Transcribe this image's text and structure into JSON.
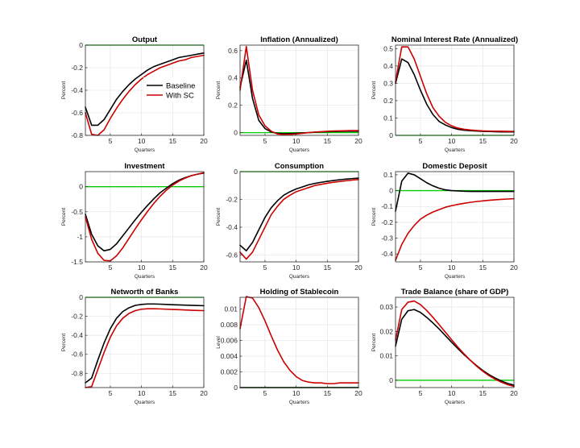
{
  "figure": {
    "legend": [
      "Baseline",
      "With SC"
    ]
  },
  "colors": {
    "baseline": "#000000",
    "with_sc": "#cc0000",
    "zero_line": "#00cc00",
    "grid": "#e6e6e6"
  },
  "chart_data": [
    {
      "type": "line",
      "title": "Output",
      "ylabel": "Percent",
      "xlabel": "Quarters",
      "xlim": [
        1,
        20
      ],
      "ylim": [
        -0.8,
        0
      ],
      "xticks": [
        5,
        10,
        15,
        20
      ],
      "yticks": [
        0,
        -0.2,
        -0.4,
        -0.6,
        -0.8
      ],
      "ytick_labels": [
        "0",
        "-0.2",
        "-0.4",
        "-0.6",
        "-0.8"
      ],
      "legend": "inside-middle-right",
      "x": [
        1,
        2,
        3,
        4,
        5,
        6,
        7,
        8,
        9,
        10,
        11,
        12,
        13,
        14,
        15,
        16,
        17,
        18,
        19,
        20
      ],
      "series": [
        {
          "name": "Baseline",
          "values": [
            -0.55,
            -0.71,
            -0.71,
            -0.66,
            -0.57,
            -0.48,
            -0.41,
            -0.35,
            -0.3,
            -0.26,
            -0.22,
            -0.19,
            -0.17,
            -0.15,
            -0.13,
            -0.11,
            -0.1,
            -0.09,
            -0.08,
            -0.07
          ]
        },
        {
          "name": "With SC",
          "values": [
            -0.6,
            -0.79,
            -0.8,
            -0.75,
            -0.65,
            -0.56,
            -0.48,
            -0.41,
            -0.35,
            -0.3,
            -0.26,
            -0.23,
            -0.2,
            -0.18,
            -0.16,
            -0.14,
            -0.13,
            -0.11,
            -0.1,
            -0.09
          ]
        }
      ]
    },
    {
      "type": "line",
      "title": "Inflation (Annualized)",
      "ylabel": "Percent",
      "xlabel": "Quarters",
      "xlim": [
        1,
        20
      ],
      "ylim": [
        -0.02,
        0.64
      ],
      "xticks": [
        5,
        10,
        15,
        20
      ],
      "yticks": [
        0.6,
        0.4,
        0.2,
        0
      ],
      "ytick_labels": [
        "0.6",
        "0.4",
        "0.2",
        "0"
      ],
      "x": [
        1,
        2,
        3,
        4,
        5,
        6,
        7,
        8,
        9,
        10,
        11,
        12,
        13,
        14,
        15,
        16,
        17,
        18,
        19,
        20
      ],
      "series": [
        {
          "name": "Baseline",
          "values": [
            0.33,
            0.53,
            0.25,
            0.09,
            0.03,
            0.005,
            -0.005,
            -0.008,
            -0.007,
            -0.005,
            -0.002,
            0.0,
            0.003,
            0.005,
            0.007,
            0.008,
            0.009,
            0.01,
            0.01,
            0.01
          ]
        },
        {
          "name": "With SC",
          "values": [
            0.31,
            0.63,
            0.31,
            0.13,
            0.05,
            0.01,
            -0.01,
            -0.014,
            -0.013,
            -0.01,
            -0.005,
            0.0,
            0.004,
            0.007,
            0.01,
            0.012,
            0.013,
            0.014,
            0.015,
            0.015
          ]
        }
      ]
    },
    {
      "type": "line",
      "title": "Nominal Interest Rate (Annualized)",
      "ylabel": "Percent",
      "xlabel": "Quarters",
      "xlim": [
        1,
        20
      ],
      "ylim": [
        0,
        0.52
      ],
      "xticks": [
        5,
        10,
        15,
        20
      ],
      "yticks": [
        0.5,
        0.4,
        0.3,
        0.2,
        0.1,
        0
      ],
      "ytick_labels": [
        "0.5",
        "0.4",
        "0.3",
        "0.2",
        "0.1",
        "0"
      ],
      "x": [
        1,
        2,
        3,
        4,
        5,
        6,
        7,
        8,
        9,
        10,
        11,
        12,
        13,
        14,
        15,
        16,
        17,
        18,
        19,
        20
      ],
      "series": [
        {
          "name": "Baseline",
          "values": [
            0.3,
            0.44,
            0.42,
            0.35,
            0.26,
            0.18,
            0.12,
            0.08,
            0.06,
            0.045,
            0.035,
            0.03,
            0.027,
            0.025,
            0.023,
            0.022,
            0.021,
            0.02,
            0.02,
            0.02
          ]
        },
        {
          "name": "With SC",
          "values": [
            0.31,
            0.51,
            0.51,
            0.44,
            0.34,
            0.24,
            0.16,
            0.11,
            0.075,
            0.055,
            0.042,
            0.035,
            0.031,
            0.028,
            0.026,
            0.025,
            0.024,
            0.024,
            0.023,
            0.023
          ]
        }
      ]
    },
    {
      "type": "line",
      "title": "Investment",
      "ylabel": "Percent",
      "xlabel": "Quarters",
      "xlim": [
        1,
        20
      ],
      "ylim": [
        -1.5,
        0.3
      ],
      "xticks": [
        5,
        10,
        15,
        20
      ],
      "yticks": [
        0,
        -0.5,
        -1,
        -1.5
      ],
      "ytick_labels": [
        "0",
        "-0.5",
        "-1",
        "-1.5"
      ],
      "x": [
        1,
        2,
        3,
        4,
        5,
        6,
        7,
        8,
        9,
        10,
        11,
        12,
        13,
        14,
        15,
        16,
        17,
        18,
        19,
        20
      ],
      "series": [
        {
          "name": "Baseline",
          "values": [
            -0.55,
            -0.95,
            -1.18,
            -1.28,
            -1.25,
            -1.14,
            -0.98,
            -0.82,
            -0.66,
            -0.51,
            -0.37,
            -0.24,
            -0.12,
            -0.03,
            0.06,
            0.13,
            0.18,
            0.22,
            0.25,
            0.27
          ]
        },
        {
          "name": "With SC",
          "values": [
            -0.6,
            -1.05,
            -1.33,
            -1.47,
            -1.48,
            -1.38,
            -1.22,
            -1.03,
            -0.84,
            -0.66,
            -0.49,
            -0.33,
            -0.19,
            -0.07,
            0.03,
            0.11,
            0.17,
            0.22,
            0.25,
            0.28
          ]
        }
      ]
    },
    {
      "type": "line",
      "title": "Consumption",
      "ylabel": "Percent",
      "xlabel": "Quarters",
      "xlim": [
        1,
        20
      ],
      "ylim": [
        -0.65,
        0
      ],
      "xticks": [
        5,
        10,
        15,
        20
      ],
      "yticks": [
        0,
        -0.2,
        -0.4,
        -0.6
      ],
      "ytick_labels": [
        "0",
        "-0.2",
        "-0.4",
        "-0.6"
      ],
      "x": [
        1,
        2,
        3,
        4,
        5,
        6,
        7,
        8,
        9,
        10,
        11,
        12,
        13,
        14,
        15,
        16,
        17,
        18,
        19,
        20
      ],
      "series": [
        {
          "name": "Baseline",
          "values": [
            -0.53,
            -0.57,
            -0.51,
            -0.42,
            -0.33,
            -0.26,
            -0.21,
            -0.17,
            -0.145,
            -0.125,
            -0.11,
            -0.095,
            -0.085,
            -0.077,
            -0.07,
            -0.064,
            -0.058,
            -0.054,
            -0.05,
            -0.047
          ]
        },
        {
          "name": "With SC",
          "values": [
            -0.58,
            -0.63,
            -0.58,
            -0.49,
            -0.4,
            -0.31,
            -0.25,
            -0.2,
            -0.17,
            -0.145,
            -0.13,
            -0.115,
            -0.1,
            -0.092,
            -0.084,
            -0.077,
            -0.071,
            -0.066,
            -0.061,
            -0.057
          ]
        }
      ]
    },
    {
      "type": "line",
      "title": "Domestic Deposit",
      "ylabel": "Percent",
      "xlabel": "Quarters",
      "xlim": [
        1,
        20
      ],
      "ylim": [
        -0.45,
        0.12
      ],
      "xticks": [
        5,
        10,
        15,
        20
      ],
      "yticks": [
        0.1,
        0,
        -0.1,
        -0.2,
        -0.3,
        -0.4
      ],
      "ytick_labels": [
        "0.1",
        "0",
        "-0.1",
        "-0.2",
        "-0.3",
        "-0.4"
      ],
      "x": [
        1,
        2,
        3,
        4,
        5,
        6,
        7,
        8,
        9,
        10,
        11,
        12,
        13,
        14,
        15,
        16,
        17,
        18,
        19,
        20
      ],
      "series": [
        {
          "name": "Baseline",
          "values": [
            -0.13,
            0.06,
            0.11,
            0.1,
            0.075,
            0.05,
            0.03,
            0.015,
            0.005,
            0.0,
            -0.002,
            -0.004,
            -0.005,
            -0.005,
            -0.005,
            -0.005,
            -0.005,
            -0.005,
            -0.005,
            -0.005
          ]
        },
        {
          "name": "With SC",
          "values": [
            -0.44,
            -0.34,
            -0.27,
            -0.22,
            -0.18,
            -0.155,
            -0.135,
            -0.12,
            -0.105,
            -0.095,
            -0.087,
            -0.08,
            -0.074,
            -0.069,
            -0.065,
            -0.061,
            -0.058,
            -0.055,
            -0.053,
            -0.051
          ]
        }
      ]
    },
    {
      "type": "line",
      "title": "Networth of Banks",
      "ylabel": "Percent",
      "xlabel": "Quarters",
      "xlim": [
        1,
        20
      ],
      "ylim": [
        -0.95,
        0
      ],
      "xticks": [
        5,
        10,
        15,
        20
      ],
      "yticks": [
        0,
        -0.2,
        -0.4,
        -0.6,
        -0.8
      ],
      "ytick_labels": [
        "0",
        "-0.2",
        "-0.4",
        "-0.6",
        "-0.8"
      ],
      "x": [
        1,
        2,
        3,
        4,
        5,
        6,
        7,
        8,
        9,
        10,
        11,
        12,
        13,
        14,
        15,
        16,
        17,
        18,
        19,
        20
      ],
      "series": [
        {
          "name": "Baseline",
          "values": [
            -0.9,
            -0.85,
            -0.66,
            -0.48,
            -0.33,
            -0.22,
            -0.15,
            -0.11,
            -0.085,
            -0.075,
            -0.07,
            -0.07,
            -0.072,
            -0.075,
            -0.078,
            -0.08,
            -0.082,
            -0.084,
            -0.086,
            -0.088
          ]
        },
        {
          "name": "With SC",
          "values": [
            -0.95,
            -0.94,
            -0.76,
            -0.58,
            -0.42,
            -0.3,
            -0.22,
            -0.17,
            -0.14,
            -0.125,
            -0.12,
            -0.12,
            -0.122,
            -0.125,
            -0.128,
            -0.13,
            -0.133,
            -0.136,
            -0.138,
            -0.14
          ]
        }
      ]
    },
    {
      "type": "line",
      "title": "Holding of Stablecoin",
      "ylabel": "Level",
      "xlabel": "Quarters",
      "xlim": [
        1,
        20
      ],
      "ylim": [
        0,
        0.0115
      ],
      "xticks": [
        5,
        10,
        15,
        20
      ],
      "yticks": [
        0.01,
        0.008,
        0.006,
        0.004,
        0.002,
        0
      ],
      "ytick_labels": [
        "0.01",
        "0.008",
        "0.006",
        "0.004",
        "0.002",
        "0"
      ],
      "x": [
        1,
        2,
        3,
        4,
        5,
        6,
        7,
        8,
        9,
        10,
        11,
        12,
        13,
        14,
        15,
        16,
        17,
        18,
        19,
        20
      ],
      "series": [
        {
          "name": "Baseline",
          "values": [
            0,
            0,
            0,
            0,
            0,
            0,
            0,
            0,
            0,
            0,
            0,
            0,
            0,
            0,
            0,
            0,
            0,
            0,
            0,
            0
          ]
        },
        {
          "name": "With SC",
          "values": [
            0.0075,
            0.0116,
            0.0114,
            0.0102,
            0.0085,
            0.0066,
            0.0048,
            0.0033,
            0.0022,
            0.0014,
            0.0009,
            0.0007,
            0.0006,
            0.0006,
            0.0005,
            0.0005,
            0.0006,
            0.0006,
            0.0006,
            0.0006
          ]
        }
      ]
    },
    {
      "type": "line",
      "title": "Trade Balance (share of GDP)",
      "ylabel": "Percent",
      "xlabel": "Quarters",
      "xlim": [
        1,
        20
      ],
      "ylim": [
        -0.003,
        0.034
      ],
      "xticks": [
        5,
        10,
        15,
        20
      ],
      "yticks": [
        0.03,
        0.02,
        0.01,
        0
      ],
      "ytick_labels": [
        "0.03",
        "0.02",
        "0.01",
        "0"
      ],
      "x": [
        1,
        2,
        3,
        4,
        5,
        6,
        7,
        8,
        9,
        10,
        11,
        12,
        13,
        14,
        15,
        16,
        17,
        18,
        19,
        20
      ],
      "series": [
        {
          "name": "Baseline",
          "values": [
            0.014,
            0.025,
            0.0285,
            0.029,
            0.0278,
            0.0258,
            0.0235,
            0.021,
            0.0183,
            0.0156,
            0.013,
            0.0105,
            0.0082,
            0.006,
            0.004,
            0.0023,
            0.0009,
            -0.0003,
            -0.0013,
            -0.002
          ]
        },
        {
          "name": "With SC",
          "values": [
            0.0165,
            0.029,
            0.032,
            0.0325,
            0.031,
            0.0286,
            0.0258,
            0.0228,
            0.0197,
            0.0166,
            0.0136,
            0.0108,
            0.0082,
            0.0058,
            0.0037,
            0.0019,
            0.0004,
            -0.0008,
            -0.0018,
            -0.0025
          ]
        }
      ]
    }
  ]
}
